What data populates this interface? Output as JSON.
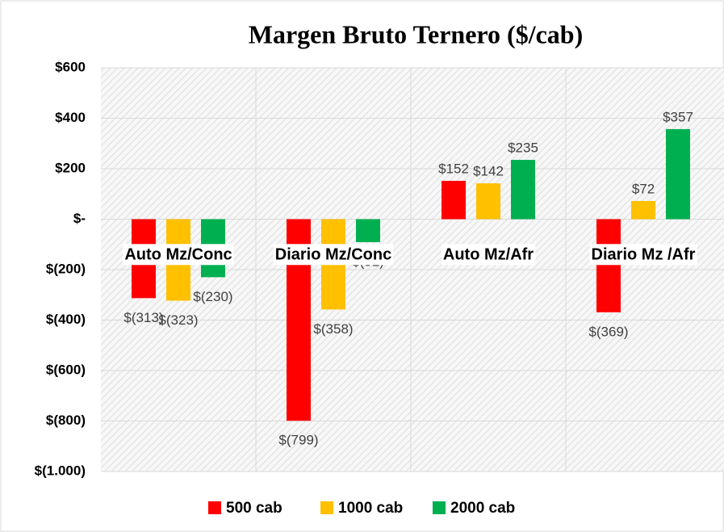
{
  "chart_data": {
    "type": "bar",
    "title": "Margen Bruto Ternero ($/cab)",
    "categories": [
      "Auto Mz/Conc",
      "Diario Mz/Conc",
      "Auto Mz/Afr",
      "Diario Mz /Afr"
    ],
    "series": [
      {
        "name": "500 cab",
        "color": "#ff0000",
        "values": [
          -313,
          -799,
          152,
          -369
        ],
        "value_labels": [
          "$(313)",
          "$(799)",
          "$152",
          "$(369)"
        ]
      },
      {
        "name": "1000 cab",
        "color": "#ffc000",
        "values": [
          -323,
          -358,
          142,
          72
        ],
        "value_labels": [
          "$(323)",
          "$(358)",
          "$142",
          "$72"
        ]
      },
      {
        "name": "2000 cab",
        "color": "#00b050",
        "values": [
          -230,
          -91,
          235,
          357
        ],
        "value_labels": [
          "$(230)",
          "$(91)",
          "$235",
          "$357"
        ]
      }
    ],
    "ylim": [
      -1000,
      600
    ],
    "yticks": [
      {
        "value": -1000,
        "label": "$(1.000)"
      },
      {
        "value": -800,
        "label": "$(800)"
      },
      {
        "value": -600,
        "label": "$(600)"
      },
      {
        "value": -400,
        "label": "$(400)"
      },
      {
        "value": -200,
        "label": "$(200)"
      },
      {
        "value": 0,
        "label": "$-"
      },
      {
        "value": 200,
        "label": "$200"
      },
      {
        "value": 400,
        "label": "$400"
      },
      {
        "value": 600,
        "label": "$600"
      }
    ],
    "grid": true
  }
}
